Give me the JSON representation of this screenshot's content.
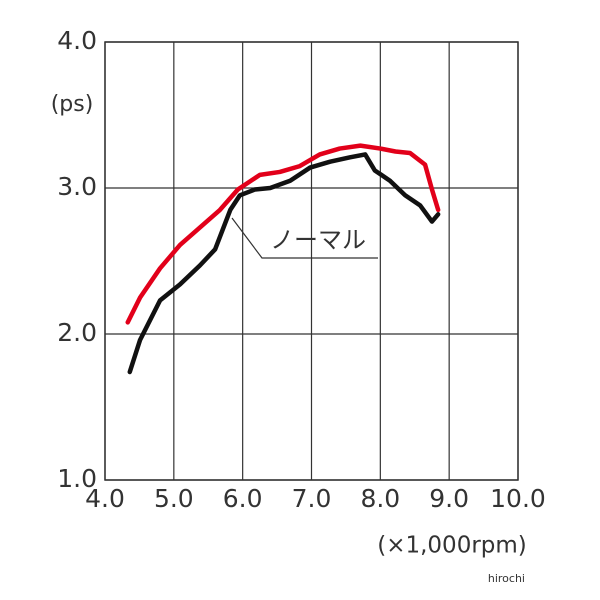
{
  "chart_data": {
    "type": "line",
    "xlabel": "(×1,000rpm)",
    "ylabel": "(ps)",
    "xlim": [
      4,
      10
    ],
    "ylim": [
      1,
      4
    ],
    "xticks": [
      {
        "value": 4,
        "label": "4.0"
      },
      {
        "value": 5,
        "label": "5.0"
      },
      {
        "value": 6,
        "label": "6.0"
      },
      {
        "value": 7,
        "label": "7.0"
      },
      {
        "value": 8,
        "label": "8.0"
      },
      {
        "value": 9,
        "label": "9.0"
      },
      {
        "value": 10,
        "label": "10.0"
      }
    ],
    "yticks": [
      {
        "value": 1,
        "label": "1.0"
      },
      {
        "value": 2,
        "label": "2.0"
      },
      {
        "value": 3,
        "label": "3.0"
      },
      {
        "value": 4,
        "label": "4.0"
      }
    ],
    "grid": true,
    "series": [
      {
        "color": "#e2001a",
        "x": [
          4.33,
          4.51,
          4.8,
          5.09,
          5.38,
          5.67,
          5.93,
          6.25,
          6.54,
          6.83,
          7.12,
          7.41,
          7.71,
          8.0,
          8.22,
          8.43,
          8.65,
          8.75,
          8.84
        ],
        "values": [
          2.08,
          2.25,
          2.45,
          2.61,
          2.73,
          2.85,
          2.99,
          3.09,
          3.11,
          3.15,
          3.23,
          3.27,
          3.29,
          3.27,
          3.25,
          3.24,
          3.16,
          2.99,
          2.85
        ]
      },
      {
        "name": "ノーマル",
        "color": "#111111",
        "x": [
          4.36,
          4.51,
          4.8,
          5.09,
          5.38,
          5.6,
          5.82,
          5.96,
          6.18,
          6.4,
          6.69,
          6.98,
          7.27,
          7.56,
          7.78,
          7.92,
          8.14,
          8.36,
          8.58,
          8.75,
          8.84
        ],
        "values": [
          1.74,
          1.96,
          2.23,
          2.34,
          2.47,
          2.58,
          2.85,
          2.95,
          2.99,
          3.0,
          3.05,
          3.14,
          3.18,
          3.21,
          3.23,
          3.12,
          3.05,
          2.95,
          2.88,
          2.77,
          2.82
        ]
      }
    ],
    "watermark": "hirochi"
  }
}
